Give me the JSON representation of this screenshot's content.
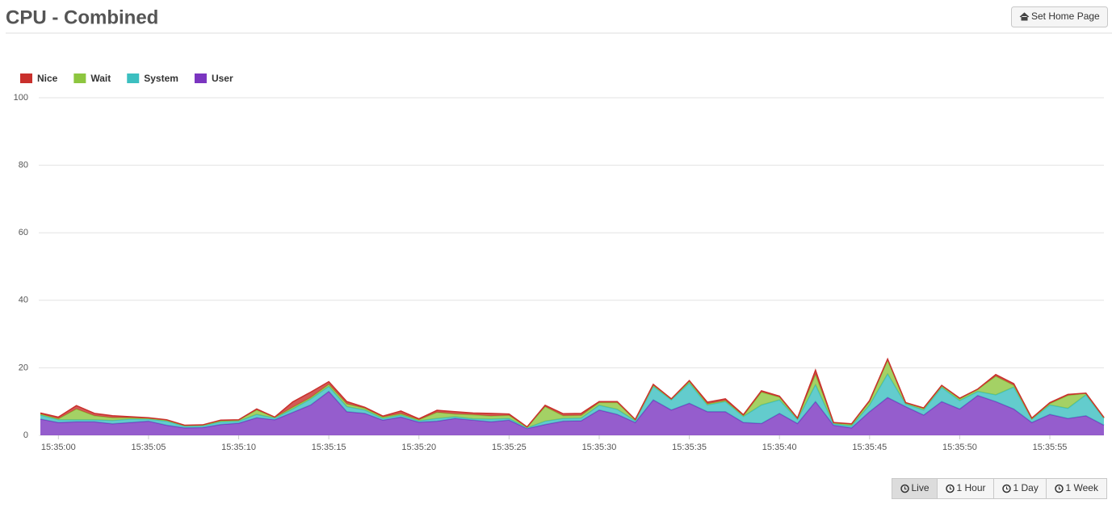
{
  "header": {
    "title": "CPU - Combined",
    "button": "Set Home Page"
  },
  "chart_data": {
    "type": "stacked-area",
    "categories": [
      null,
      "15:35:00",
      null,
      null,
      null,
      null,
      "15:35:05",
      null,
      null,
      null,
      null,
      "15:35:10",
      null,
      null,
      null,
      null,
      "15:35:15",
      null,
      null,
      null,
      null,
      "15:35:20",
      null,
      null,
      null,
      null,
      "15:35:25",
      null,
      null,
      null,
      null,
      "15:35:30",
      null,
      null,
      null,
      null,
      "15:35:35",
      null,
      null,
      null,
      null,
      "15:35:40",
      null,
      null,
      null,
      null,
      "15:35:45",
      null,
      null,
      null,
      null,
      "15:35:50",
      null,
      null,
      null,
      null,
      "15:35:55",
      null,
      null,
      null
    ],
    "series": [
      {
        "name": "Nice",
        "color": "#c9302c",
        "values": [
          0.3,
          0.5,
          1.0,
          0.7,
          0.6,
          0.3,
          0.2,
          0.1,
          0.1,
          0.1,
          0.2,
          0.1,
          0.3,
          0.1,
          1.6,
          1.6,
          0.8,
          0.7,
          0.3,
          0.3,
          0.8,
          0.3,
          0.6,
          0.7,
          0.5,
          0.8,
          0.4,
          0.1,
          0.4,
          0.6,
          0.6,
          0.3,
          0.3,
          0.1,
          0.3,
          0.1,
          0.2,
          0.5,
          0.5,
          0.3,
          0.4,
          0.3,
          0.1,
          1.3,
          0.1,
          0.1,
          0.3,
          0.4,
          0.1,
          0.1,
          0.1,
          0.2,
          0.1,
          0.5,
          0.5,
          0.2,
          0.3,
          0.3,
          0.1,
          0.1
        ]
      },
      {
        "name": "Wait",
        "color": "#8dc63f",
        "values": [
          0.3,
          0.3,
          3.2,
          1.2,
          0.8,
          0.4,
          0.2,
          0.3,
          0.2,
          0.2,
          0.3,
          0.3,
          1.3,
          0.2,
          0.5,
          0.4,
          0.6,
          0.8,
          0.5,
          0.4,
          0.4,
          0.3,
          1.8,
          0.8,
          1.2,
          0.9,
          0.9,
          0.2,
          4.3,
          0.8,
          0.8,
          0.8,
          2.0,
          0.3,
          0.3,
          0.2,
          0.5,
          0.3,
          0.3,
          0.2,
          3.8,
          0.8,
          0.3,
          3.0,
          0.3,
          0.5,
          1.0,
          4.0,
          0.3,
          0.5,
          0.5,
          0.5,
          0.6,
          5.5,
          0.5,
          0.1,
          0.4,
          3.8,
          0.4,
          0.2
        ]
      },
      {
        "name": "System",
        "color": "#3cbfc0",
        "values": [
          1.2,
          0.8,
          0.6,
          0.6,
          1.0,
          1.0,
          0.6,
          1.2,
          0.5,
          0.5,
          0.8,
          0.6,
          1.0,
          0.5,
          1.0,
          1.8,
          1.5,
          1.5,
          1.0,
          0.5,
          0.6,
          0.4,
          0.8,
          0.5,
          0.4,
          0.8,
          0.5,
          0.2,
          1.0,
          0.8,
          0.8,
          1.4,
          1.5,
          0.5,
          4.0,
          3.0,
          6.0,
          2.0,
          3.0,
          1.8,
          5.5,
          4.0,
          1.2,
          5.0,
          0.4,
          0.6,
          2.0,
          7.0,
          0.8,
          1.5,
          4.2,
          2.5,
          1.2,
          2.0,
          6.5,
          1.0,
          2.8,
          3.0,
          6.2,
          2.0
        ]
      },
      {
        "name": "User",
        "color": "#7b35c0",
        "values": [
          4.8,
          3.8,
          4.0,
          4.0,
          3.4,
          3.8,
          4.2,
          3.0,
          2.2,
          2.3,
          3.2,
          3.6,
          5.2,
          4.6,
          6.8,
          9.0,
          13.0,
          7.0,
          6.5,
          4.5,
          5.4,
          3.9,
          4.2,
          5.0,
          4.5,
          4.0,
          4.5,
          2.0,
          3.2,
          4.2,
          4.3,
          7.5,
          6.2,
          3.8,
          10.5,
          7.5,
          9.5,
          7.0,
          7.0,
          3.8,
          3.5,
          6.5,
          3.5,
          10.0,
          3.0,
          2.2,
          7.0,
          11.2,
          8.5,
          6.0,
          10.0,
          7.8,
          11.8,
          10.0,
          7.8,
          3.8,
          6.2,
          5.0,
          5.8,
          3.0
        ]
      }
    ],
    "ylim": [
      0,
      100
    ],
    "yticks": [
      0,
      20,
      40,
      60,
      80,
      100
    ],
    "grid": true,
    "legend": "top-left"
  },
  "range_buttons": [
    "Live",
    "1 Hour",
    "1 Day",
    "1 Week"
  ]
}
